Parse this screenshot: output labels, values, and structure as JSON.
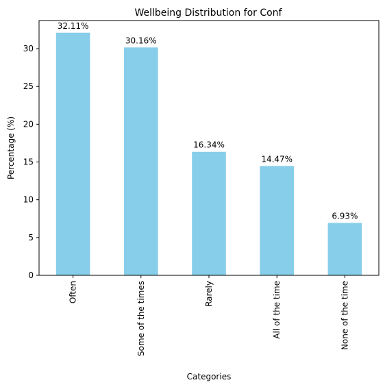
{
  "chart_data": {
    "type": "bar",
    "title": "Wellbeing Distribution for Conf",
    "xlabel": "Categories",
    "ylabel": "Percentage (%)",
    "categories": [
      "Often",
      "Some of the times",
      "Rarely",
      "All of the time",
      "None of the time"
    ],
    "values": [
      32.11,
      30.16,
      16.34,
      14.47,
      6.93
    ],
    "data_labels": [
      "32.11%",
      "30.16%",
      "16.34%",
      "14.47%",
      "6.93%"
    ],
    "yticks": [
      0,
      5,
      10,
      15,
      20,
      25,
      30
    ],
    "ylim": [
      0,
      33.72
    ],
    "grid": false,
    "bar_color": "#87ceeb"
  }
}
